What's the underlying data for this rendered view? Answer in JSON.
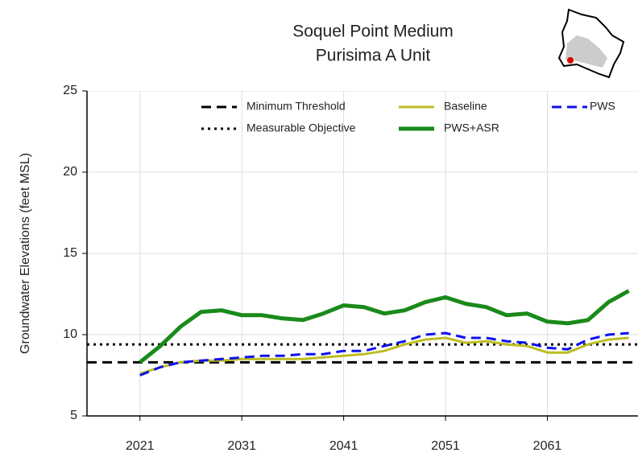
{
  "chart_data": {
    "type": "line",
    "title": "Soquel Point Medium",
    "subtitle": "Purisima A Unit",
    "y_label": "Groundwater Elevations (feet MSL)",
    "xlim": [
      2015.8,
      2069.9
    ],
    "ylim": [
      5,
      25
    ],
    "xticks": [
      2021,
      2031,
      2041,
      2051,
      2061
    ],
    "yticks": [
      5,
      10,
      15,
      20,
      25
    ],
    "grid": true,
    "x": [
      2021,
      2023,
      2025,
      2027,
      2029,
      2031,
      2033,
      2035,
      2037,
      2039,
      2041,
      2043,
      2045,
      2047,
      2049,
      2051,
      2053,
      2055,
      2057,
      2059,
      2061,
      2063,
      2065,
      2067,
      2069
    ],
    "reference_lines": [
      {
        "name": "Minimum Threshold",
        "value": 8.3,
        "color": "#000000",
        "style": "dashed"
      },
      {
        "name": "Measurable Objective",
        "value": 9.4,
        "color": "#000000",
        "style": "dotted"
      }
    ],
    "series": [
      {
        "name": "Baseline",
        "color": "#bcbd22",
        "style": "solid",
        "width": 3,
        "values": [
          7.6,
          8.0,
          8.3,
          8.4,
          8.4,
          8.5,
          8.5,
          8.5,
          8.5,
          8.6,
          8.7,
          8.8,
          9.0,
          9.4,
          9.7,
          9.8,
          9.5,
          9.6,
          9.4,
          9.3,
          8.9,
          8.9,
          9.4,
          9.7,
          9.8
        ]
      },
      {
        "name": "PWS+ASR",
        "color": "#1a8a1a",
        "style": "solid",
        "width": 5,
        "values": [
          8.3,
          9.3,
          10.5,
          11.4,
          11.5,
          11.2,
          11.2,
          11.0,
          10.9,
          11.3,
          11.8,
          11.7,
          11.3,
          11.5,
          12.0,
          12.3,
          11.9,
          11.7,
          11.2,
          11.3,
          10.8,
          10.7,
          10.9,
          12.0,
          12.7
        ]
      },
      {
        "name": "PWS",
        "color": "#1010ee",
        "style": "dashed",
        "width": 3,
        "values": [
          7.5,
          8.0,
          8.3,
          8.4,
          8.5,
          8.6,
          8.7,
          8.7,
          8.8,
          8.8,
          9.0,
          9.0,
          9.3,
          9.6,
          10.0,
          10.1,
          9.8,
          9.8,
          9.6,
          9.5,
          9.2,
          9.1,
          9.7,
          10.0,
          10.1
        ]
      }
    ]
  }
}
